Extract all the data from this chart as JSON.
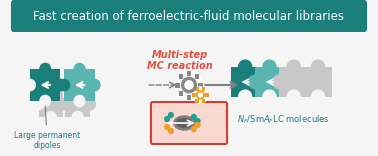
{
  "title": "Fast creation of ferroelectric-fluid molecular libraries",
  "title_color": "#ffffff",
  "title_bg": "#1a7f7a",
  "border_color": "#1a7f7a",
  "bg_color": "#f5f5f5",
  "teal_dark": "#1a7f7a",
  "teal_light": "#5ab5b0",
  "gray_light": "#c8c8c8",
  "red_label": "#e05040",
  "label_left": "Large permanent\ndipoles",
  "label_right": "N₂/SmA₂LC molecules",
  "label_center_top": "Multi-step",
  "label_center_bot": "MC reaction",
  "figsize": [
    3.78,
    1.56
  ],
  "dpi": 100
}
